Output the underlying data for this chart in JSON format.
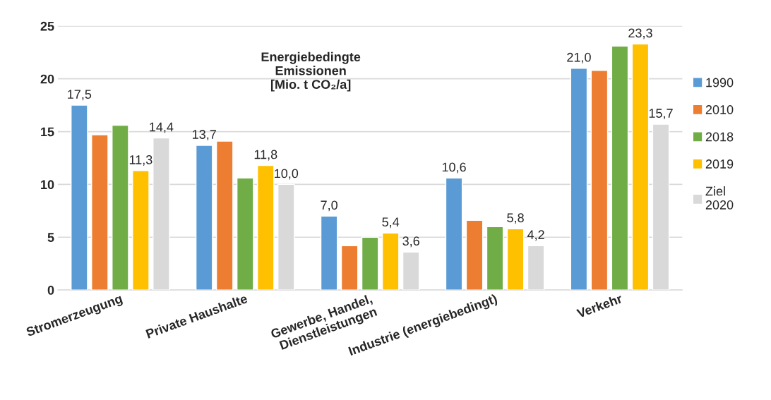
{
  "chart_data": {
    "type": "bar",
    "title": "Energiebedingte\nEmissionen\n[Mio. t CO₂/a]",
    "categories": [
      "Stromerzeugung",
      "Private Haushalte",
      "Gewerbe, Handel,\nDienstleistungen",
      "Industrie (energiebedingt)",
      "Verkehr"
    ],
    "series": [
      {
        "name": "1990",
        "color": "#5b9bd5",
        "values": [
          17.5,
          13.7,
          7.0,
          10.6,
          21.0
        ],
        "value_labels": [
          "17,5",
          "13,7",
          "7,0",
          "10,6",
          "21,0"
        ]
      },
      {
        "name": "2010",
        "color": "#ed7d31",
        "values": [
          14.7,
          14.1,
          4.2,
          6.6,
          20.8
        ]
      },
      {
        "name": "2018",
        "color": "#70ad47",
        "values": [
          15.6,
          10.6,
          5.0,
          6.0,
          23.1
        ]
      },
      {
        "name": "2019",
        "color": "#ffc000",
        "values": [
          11.3,
          11.8,
          5.4,
          5.8,
          23.3
        ],
        "value_labels": [
          "11,3",
          "11,8",
          "5,4",
          "5,8",
          "23,3"
        ]
      },
      {
        "name": "Ziel\n2020",
        "color": "#d9d9d9",
        "values": [
          14.4,
          10.0,
          3.6,
          4.2,
          15.7
        ],
        "value_labels": [
          "14,4",
          "10,0",
          "3,6",
          "4,2",
          "15,7"
        ]
      }
    ],
    "ylim": [
      0,
      25
    ],
    "yticks": [
      0,
      5,
      10,
      15,
      20,
      25
    ],
    "grid": "y",
    "legend": "right"
  }
}
